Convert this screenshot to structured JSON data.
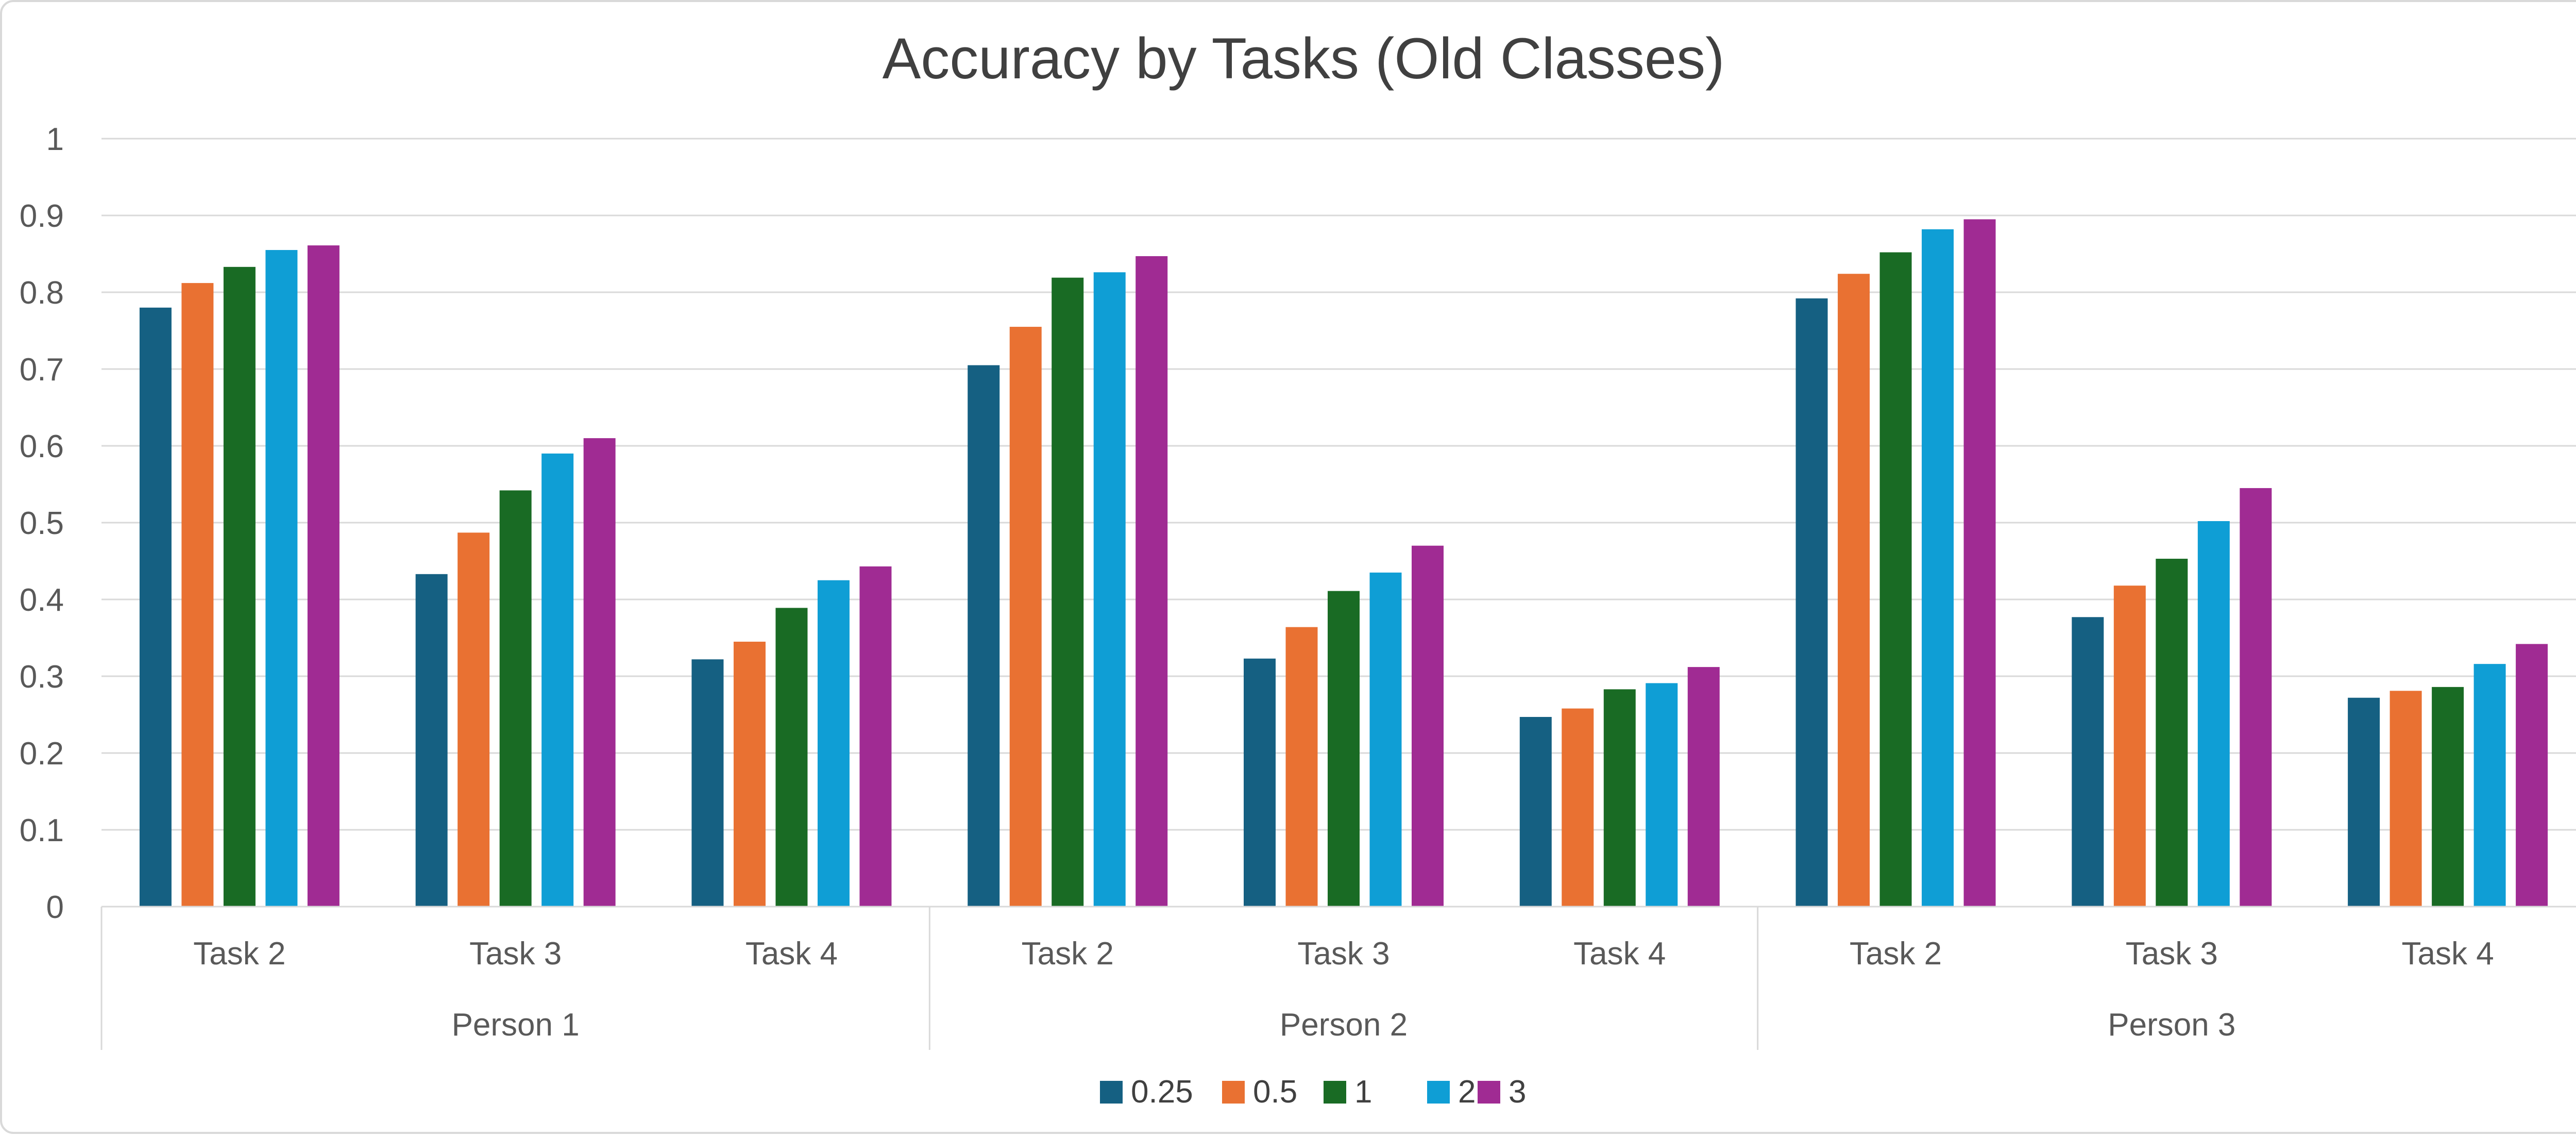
{
  "chart_data": {
    "type": "bar",
    "title": "Accuracy by Tasks (Old Classes)",
    "xlabel": "",
    "ylabel": "",
    "ylim": [
      0,
      1
    ],
    "yticks": [
      "0",
      "0.1",
      "0.2",
      "0.3",
      "0.4",
      "0.5",
      "0.6",
      "0.7",
      "0.8",
      "0.9",
      "1"
    ],
    "grid": true,
    "legend_position": "bottom",
    "groups": [
      "Person 1",
      "Person 2",
      "Person 3"
    ],
    "categories": [
      "Task 2",
      "Task 3",
      "Task 4",
      "Task 2",
      "Task 3",
      "Task 4",
      "Task 2",
      "Task 3",
      "Task 4"
    ],
    "series": [
      {
        "name": "0.25",
        "color": "#156082",
        "values": [
          0.78,
          0.433,
          0.322,
          0.705,
          0.323,
          0.247,
          0.792,
          0.377,
          0.272
        ]
      },
      {
        "name": "0.5",
        "color": "#E97132",
        "values": [
          0.812,
          0.487,
          0.345,
          0.755,
          0.364,
          0.258,
          0.824,
          0.418,
          0.281
        ]
      },
      {
        "name": "1",
        "color": "#196B24",
        "values": [
          0.833,
          0.542,
          0.389,
          0.819,
          0.411,
          0.283,
          0.852,
          0.453,
          0.286
        ]
      },
      {
        "name": "2",
        "color": "#0F9ED5",
        "values": [
          0.855,
          0.59,
          0.425,
          0.826,
          0.435,
          0.291,
          0.882,
          0.502,
          0.316
        ]
      },
      {
        "name": "3",
        "color": "#A02B93",
        "values": [
          0.861,
          0.61,
          0.443,
          0.847,
          0.47,
          0.312,
          0.895,
          0.545,
          0.342
        ]
      }
    ]
  }
}
